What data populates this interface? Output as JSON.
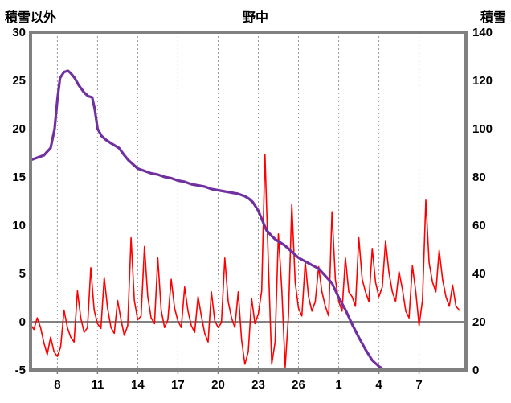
{
  "header": {
    "left_axis_title": "積雪以外",
    "chart_title": "野中",
    "right_axis_title": "積雪"
  },
  "chart_data": {
    "type": "line",
    "title": "野中",
    "x_axis": {
      "min": 0,
      "max": 32.5,
      "tick_positions": [
        2,
        5,
        8,
        11,
        14,
        17,
        20,
        23,
        26,
        29
      ],
      "tick_labels": [
        "8",
        "11",
        "14",
        "17",
        "20",
        "23",
        "26",
        "1",
        "4",
        "7"
      ]
    },
    "left_axis": {
      "label": "積雪以外",
      "min": -5,
      "max": 30,
      "ticks": [
        30,
        25,
        20,
        15,
        10,
        5,
        0,
        -5
      ]
    },
    "right_axis": {
      "label": "積雪",
      "min": 0,
      "max": 140,
      "ticks": [
        140,
        120,
        100,
        80,
        60,
        40,
        20,
        0
      ]
    },
    "grid": {
      "vertical_dashed": true,
      "zero_line_left_axis": 0
    },
    "colors": {
      "frame": "#808080",
      "grid": "#999999",
      "zero_line": "#595959",
      "background": "#ffffff",
      "snow_depth": "#7030a0",
      "temperature": "#ff0000"
    },
    "series": [
      {
        "name": "積雪以外",
        "axis": "left",
        "color": "#ff0000",
        "width": 1.6,
        "x_start": 0,
        "x_step": 0.25,
        "values": [
          -0.3,
          -0.8,
          0.4,
          -0.6,
          -2.2,
          -3.4,
          -1.6,
          -3.1,
          -3.6,
          -2.6,
          1.2,
          -0.6,
          -1.6,
          -2.1,
          3.2,
          0.4,
          -1.1,
          -0.6,
          5.6,
          1.2,
          -0.2,
          -0.7,
          4.6,
          1.4,
          -0.6,
          -1.2,
          2.2,
          0.2,
          -1.4,
          -0.4,
          8.7,
          2.2,
          0.2,
          0.6,
          7.8,
          2.6,
          0.4,
          -0.2,
          6.6,
          1.2,
          -0.6,
          0.2,
          4.4,
          1.4,
          0.1,
          -0.6,
          3.6,
          1.1,
          -0.4,
          -1.1,
          2.6,
          0.6,
          -1.2,
          -2.1,
          3.1,
          0.1,
          -0.6,
          -0.1,
          6.6,
          2.1,
          0.4,
          -0.6,
          3.1,
          -1.9,
          -4.4,
          -3.1,
          2.4,
          -0.2,
          0.8,
          3.2,
          17.3,
          6.1,
          -4.4,
          -2.1,
          9.1,
          3.4,
          -4.7,
          0.6,
          12.2,
          4.1,
          1.4,
          0.6,
          6.2,
          2.6,
          1.1,
          2.1,
          5.7,
          3.1,
          1.6,
          0.6,
          11.4,
          4.4,
          2.1,
          1.1,
          6.6,
          3.1,
          2.6,
          1.6,
          8.7,
          4.4,
          3.1,
          2.1,
          7.6,
          4.1,
          2.6,
          3.6,
          8.4,
          5.1,
          3.1,
          2.1,
          5.2,
          3.4,
          1.1,
          0.4,
          5.8,
          3.1,
          -0.4,
          2.2,
          12.6,
          6.1,
          4.1,
          3.1,
          7.4,
          4.4,
          2.6,
          1.6,
          3.8,
          1.6,
          1.2
        ]
      },
      {
        "name": "積雪",
        "axis": "right",
        "color": "#7030a0",
        "width": 3.2,
        "x": [
          0,
          0.5,
          1,
          1.5,
          1.8,
          2,
          2.2,
          2.5,
          2.8,
          3,
          3.3,
          3.6,
          4,
          4.3,
          4.6,
          4.8,
          5,
          5.3,
          5.6,
          6,
          6.3,
          6.6,
          7,
          7.3,
          7.6,
          8,
          8.5,
          9,
          9.5,
          10,
          10.5,
          11,
          11.5,
          12,
          12.5,
          13,
          13.5,
          14,
          14.5,
          15,
          15.5,
          16,
          16.3,
          16.6,
          17,
          17.3,
          17.6,
          18,
          18.3,
          18.6,
          19,
          19.3,
          19.6,
          20,
          20.5,
          21,
          21.5,
          22,
          22.5,
          23,
          23.5,
          24,
          24.5,
          25,
          25.5,
          26,
          26.4,
          27,
          28,
          29,
          30,
          31,
          32,
          32.5
        ],
        "values": [
          87,
          88,
          89,
          92,
          100,
          112,
          121,
          123.5,
          124,
          123,
          121,
          118,
          115,
          113.5,
          113,
          108,
          100,
          97,
          95.5,
          94,
          93,
          92,
          89,
          87,
          85.5,
          83.5,
          82.5,
          81.5,
          81,
          80,
          79.5,
          78.5,
          78,
          77,
          76.5,
          76,
          75,
          74.5,
          74,
          73.5,
          73,
          72,
          71,
          69.5,
          66,
          62,
          58,
          55.5,
          54,
          53,
          51.5,
          50,
          48.5,
          46.5,
          45,
          43.5,
          42,
          39,
          36,
          30,
          25,
          19,
          13.5,
          8.5,
          4,
          1.5,
          0,
          0,
          0,
          0,
          0,
          0,
          0,
          0
        ]
      }
    ]
  }
}
